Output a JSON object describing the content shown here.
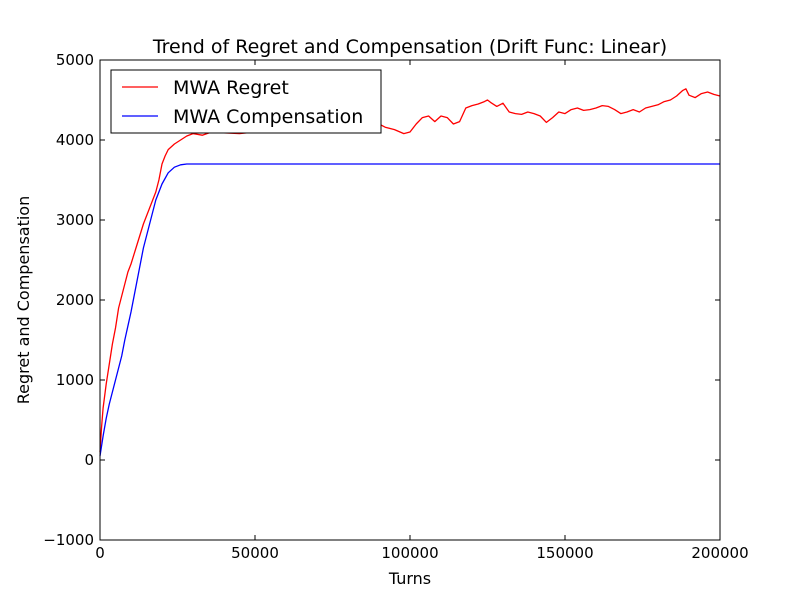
{
  "chart_data": {
    "type": "line",
    "title": "Trend of Regret and Compensation (Drift Func: Linear)",
    "xlabel": "Turns",
    "ylabel": "Regret and Compensation",
    "xlim": [
      0,
      200000
    ],
    "ylim": [
      -1000,
      5000
    ],
    "xticks": [
      0,
      50000,
      100000,
      150000,
      200000
    ],
    "xtick_labels": [
      "0",
      "50000",
      "100000",
      "150000",
      "200000"
    ],
    "yticks": [
      -1000,
      0,
      1000,
      2000,
      3000,
      4000,
      5000
    ],
    "ytick_labels": [
      "−1000",
      "0",
      "1000",
      "2000",
      "3000",
      "4000",
      "5000"
    ],
    "grid": false,
    "legend_position": "top-left",
    "series": [
      {
        "name": "MWA Regret",
        "color": "#ff0000",
        "x": [
          0,
          500,
          1000,
          2000,
          3000,
          4000,
          5000,
          6000,
          7000,
          8000,
          9000,
          10000,
          12000,
          14000,
          16000,
          18000,
          19000,
          20000,
          21000,
          22000,
          24000,
          26000,
          28000,
          30000,
          33000,
          36000,
          40000,
          45000,
          50000,
          55000,
          60000,
          65000,
          70000,
          75000,
          80000,
          85000,
          88000,
          90000,
          92000,
          95000,
          98000,
          100000,
          102000,
          104000,
          106000,
          108000,
          110000,
          112000,
          114000,
          116000,
          118000,
          120000,
          122000,
          124000,
          125000,
          126000,
          128000,
          130000,
          132000,
          134000,
          136000,
          138000,
          140000,
          142000,
          144000,
          146000,
          148000,
          150000,
          152000,
          154000,
          156000,
          158000,
          160000,
          162000,
          164000,
          166000,
          168000,
          170000,
          172000,
          174000,
          176000,
          178000,
          180000,
          182000,
          184000,
          186000,
          188000,
          189000,
          190000,
          192000,
          194000,
          196000,
          198000,
          200000
        ],
        "y": [
          100,
          400,
          650,
          950,
          1200,
          1450,
          1650,
          1900,
          2050,
          2200,
          2350,
          2450,
          2700,
          2950,
          3150,
          3350,
          3500,
          3700,
          3800,
          3880,
          3950,
          4000,
          4050,
          4080,
          4060,
          4100,
          4090,
          4080,
          4100,
          4120,
          4110,
          4140,
          4150,
          4180,
          4200,
          4240,
          4260,
          4200,
          4160,
          4130,
          4080,
          4100,
          4200,
          4280,
          4300,
          4230,
          4300,
          4280,
          4200,
          4230,
          4400,
          4430,
          4450,
          4480,
          4500,
          4470,
          4420,
          4460,
          4350,
          4330,
          4320,
          4350,
          4330,
          4300,
          4220,
          4280,
          4350,
          4330,
          4380,
          4400,
          4370,
          4380,
          4400,
          4430,
          4420,
          4380,
          4330,
          4350,
          4380,
          4350,
          4400,
          4420,
          4440,
          4480,
          4500,
          4550,
          4620,
          4640,
          4560,
          4530,
          4580,
          4600,
          4570,
          4550
        ]
      },
      {
        "name": "MWA Compensation",
        "color": "#0000ff",
        "x": [
          0,
          1000,
          2000,
          3000,
          4000,
          5000,
          6000,
          7000,
          8000,
          10000,
          12000,
          14000,
          16000,
          18000,
          20000,
          22000,
          24000,
          26000,
          28000,
          30000,
          40000,
          60000,
          80000,
          100000,
          120000,
          140000,
          160000,
          180000,
          200000
        ],
        "y": [
          50,
          300,
          520,
          700,
          850,
          1000,
          1150,
          1300,
          1500,
          1850,
          2250,
          2650,
          2950,
          3250,
          3450,
          3590,
          3660,
          3690,
          3700,
          3700,
          3700,
          3700,
          3700,
          3700,
          3700,
          3700,
          3700,
          3700,
          3700
        ]
      }
    ]
  }
}
